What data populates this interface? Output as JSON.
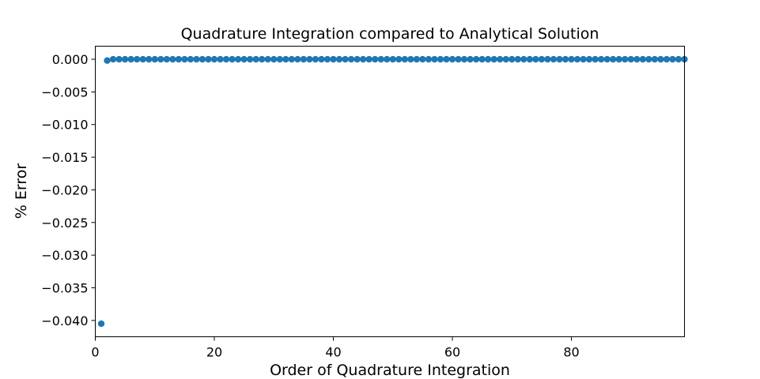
{
  "chart_data": {
    "type": "scatter",
    "title": "Quadrature Integration compared to Analytical Solution",
    "xlabel": "Order of Quadrature Integration",
    "ylabel": "% Error",
    "xlim": [
      0,
      99
    ],
    "ylim": [
      -0.0425,
      0.002
    ],
    "xticks": [
      0,
      20,
      40,
      60,
      80
    ],
    "xtick_labels": [
      "0",
      "20",
      "40",
      "60",
      "80"
    ],
    "yticks": [
      0.0,
      -0.005,
      -0.01,
      -0.015,
      -0.02,
      -0.025,
      -0.03,
      -0.035,
      -0.04
    ],
    "ytick_labels": [
      "0.000",
      "−0.005",
      "−0.010",
      "−0.015",
      "−0.020",
      "−0.025",
      "−0.030",
      "−0.035",
      "−0.040"
    ],
    "grid": false,
    "marker_color": "#1f77b4",
    "series": [
      {
        "x_start": 1,
        "x_end": 99,
        "y": [
          -0.0405,
          -0.0002,
          0,
          0,
          0,
          0,
          0,
          0,
          0,
          0,
          0,
          0,
          0,
          0,
          0,
          0,
          0,
          0,
          0,
          0,
          0,
          0,
          0,
          0,
          0,
          0,
          0,
          0,
          0,
          0,
          0,
          0,
          0,
          0,
          0,
          0,
          0,
          0,
          0,
          0,
          0,
          0,
          0,
          0,
          0,
          0,
          0,
          0,
          0,
          0,
          0,
          0,
          0,
          0,
          0,
          0,
          0,
          0,
          0,
          0,
          0,
          0,
          0,
          0,
          0,
          0,
          0,
          0,
          0,
          0,
          0,
          0,
          0,
          0,
          0,
          0,
          0,
          0,
          0,
          0,
          0,
          0,
          0,
          0,
          0,
          0,
          0,
          0,
          0,
          0,
          0,
          0,
          0,
          0,
          0,
          0,
          0,
          0,
          0
        ]
      }
    ]
  }
}
